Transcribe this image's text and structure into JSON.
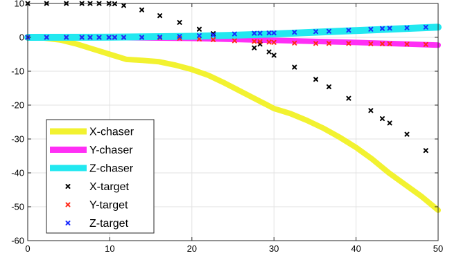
{
  "chart_data": {
    "type": "line",
    "title": "",
    "xlabel": "",
    "ylabel": "",
    "xlim": [
      0,
      50
    ],
    "ylim": [
      -60,
      10
    ],
    "xticks": [
      0,
      10,
      20,
      30,
      40,
      50
    ],
    "yticks": [
      10,
      0,
      -10,
      -20,
      -30,
      -40,
      -50,
      -60
    ],
    "grid": true,
    "legend_position": "bottom-left",
    "series": [
      {
        "name": "X-chaser",
        "kind": "line",
        "color": "#f2f230",
        "x": [
          0,
          2,
          4,
          6,
          8,
          10,
          12,
          14,
          16,
          18,
          20,
          22,
          24,
          26,
          28,
          30,
          32,
          34,
          36,
          38,
          40,
          42,
          44,
          46,
          48,
          50
        ],
        "y": [
          0,
          -0.2,
          -0.8,
          -2,
          -3.5,
          -5,
          -6.5,
          -6.8,
          -7.2,
          -8.2,
          -9.5,
          -11.2,
          -13.5,
          -16,
          -18.5,
          -21,
          -22.5,
          -24.5,
          -26.8,
          -29.5,
          -32.5,
          -36,
          -40,
          -43.5,
          -47,
          -51
        ]
      },
      {
        "name": "Y-chaser",
        "kind": "line",
        "color": "#ff2ff5",
        "x": [
          0,
          10,
          20,
          25,
          30,
          35,
          40,
          45,
          50
        ],
        "y": [
          0,
          -0.05,
          -0.3,
          -0.6,
          -0.9,
          -1.2,
          -1.5,
          -1.9,
          -2.3
        ]
      },
      {
        "name": "Z-chaser",
        "kind": "line",
        "color": "#22e8f0",
        "x": [
          0,
          10,
          20,
          25,
          30,
          35,
          40,
          45,
          50
        ],
        "y": [
          0,
          0.05,
          0.3,
          0.6,
          1,
          1.5,
          2,
          2.5,
          3
        ]
      },
      {
        "name": "X-target",
        "kind": "scatter",
        "color": "#000000",
        "x": [
          0,
          2.3,
          4.7,
          6.6,
          7.6,
          8.7,
          9.9,
          10.6,
          11.7,
          13.9,
          16.1,
          18.5,
          20.9,
          22.6,
          27.6,
          28.3,
          29.4,
          30,
          32.5,
          35.1,
          36.7,
          39.1,
          41.8,
          43.2,
          44.1,
          46.2,
          48.5
        ],
        "y": [
          10,
          10,
          10,
          10,
          10,
          10,
          10,
          9.9,
          9.4,
          8.1,
          6.4,
          4.4,
          2.4,
          1.1,
          -3.1,
          -2,
          -4.3,
          -5.3,
          -8.8,
          -12.4,
          -14.6,
          -18,
          -21.6,
          -24,
          -25.3,
          -28.6,
          -33.4
        ]
      },
      {
        "name": "Y-target",
        "kind": "scatter",
        "color": "#ff2a1a",
        "x": [
          0,
          2.3,
          4.7,
          6.6,
          7.6,
          8.7,
          9.9,
          10.6,
          11.7,
          13.9,
          16.1,
          18.5,
          20.9,
          22.6,
          25.2,
          27.6,
          28.3,
          29.4,
          30,
          32.5,
          35.1,
          36.7,
          39.1,
          41.8,
          43.2,
          44.1,
          46.2,
          48.5
        ],
        "y": [
          0,
          0,
          0,
          0,
          0,
          0,
          0,
          0,
          0,
          0,
          -0.1,
          -0.3,
          -0.5,
          -0.7,
          -1,
          -1.2,
          -1.3,
          -1.4,
          -1.5,
          -1.7,
          -1.8,
          -1.8,
          -1.8,
          -1.9,
          -1.9,
          -1.9,
          -2,
          -2.1
        ]
      },
      {
        "name": "Z-target",
        "kind": "scatter",
        "color": "#1a2bff",
        "x": [
          0,
          2.3,
          4.7,
          6.6,
          7.6,
          8.7,
          9.9,
          10.6,
          11.7,
          13.9,
          16.1,
          18.5,
          20.9,
          22.6,
          25.2,
          27.6,
          28.3,
          29.4,
          30,
          32.5,
          35.1,
          36.7,
          39.1,
          41.8,
          43.2,
          44.1,
          46.2,
          48.5
        ],
        "y": [
          0,
          0,
          0,
          0,
          0,
          0,
          0,
          0,
          0,
          0,
          0.1,
          0.3,
          0.5,
          0.7,
          1,
          1.2,
          1.2,
          1.3,
          1.3,
          1.5,
          1.7,
          1.8,
          2.1,
          2.4,
          2.6,
          2.7,
          2.8,
          3
        ]
      }
    ]
  }
}
